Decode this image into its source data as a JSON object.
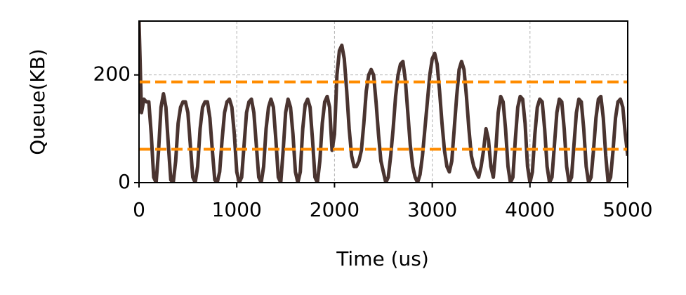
{
  "chart_data": {
    "type": "line",
    "xlabel": "Time (us)",
    "ylabel": "Queue(KB)",
    "xlim": [
      0,
      5000
    ],
    "xticks": [
      0,
      1000,
      2000,
      3000,
      4000,
      5000
    ],
    "ylim": [
      0,
      300
    ],
    "yticks": [
      0,
      200
    ],
    "grid": true,
    "hlines": [
      {
        "value": 187,
        "color": "#ff8c00"
      },
      {
        "value": 62,
        "color": "#ff8c00"
      }
    ],
    "series": [
      {
        "color": "#4a3430",
        "x": [
          0,
          25,
          50,
          75,
          100,
          125,
          150,
          175,
          200,
          225,
          250,
          275,
          300,
          325,
          350,
          375,
          400,
          425,
          450,
          475,
          500,
          525,
          550,
          575,
          600,
          625,
          650,
          675,
          700,
          725,
          750,
          775,
          800,
          825,
          850,
          875,
          900,
          925,
          950,
          975,
          1000,
          1025,
          1050,
          1075,
          1100,
          1125,
          1150,
          1175,
          1200,
          1225,
          1250,
          1275,
          1300,
          1325,
          1350,
          1375,
          1400,
          1425,
          1450,
          1475,
          1500,
          1525,
          1550,
          1575,
          1600,
          1625,
          1650,
          1675,
          1700,
          1725,
          1750,
          1775,
          1800,
          1825,
          1850,
          1875,
          1900,
          1925,
          1950,
          1975,
          2000,
          2025,
          2050,
          2075,
          2100,
          2125,
          2150,
          2175,
          2200,
          2225,
          2250,
          2275,
          2300,
          2325,
          2350,
          2375,
          2400,
          2425,
          2450,
          2475,
          2500,
          2525,
          2550,
          2575,
          2600,
          2625,
          2650,
          2675,
          2700,
          2725,
          2750,
          2775,
          2800,
          2825,
          2850,
          2875,
          2900,
          2925,
          2950,
          2975,
          3000,
          3025,
          3050,
          3075,
          3100,
          3125,
          3150,
          3175,
          3200,
          3225,
          3250,
          3275,
          3300,
          3325,
          3350,
          3375,
          3400,
          3425,
          3450,
          3475,
          3500,
          3525,
          3550,
          3575,
          3600,
          3625,
          3650,
          3675,
          3700,
          3725,
          3750,
          3775,
          3800,
          3825,
          3850,
          3875,
          3900,
          3925,
          3950,
          3975,
          4000,
          4025,
          4050,
          4075,
          4100,
          4125,
          4150,
          4175,
          4200,
          4225,
          4250,
          4275,
          4300,
          4325,
          4350,
          4375,
          4400,
          4425,
          4450,
          4475,
          4500,
          4525,
          4550,
          4575,
          4600,
          4625,
          4650,
          4675,
          4700,
          4725,
          4750,
          4775,
          4800,
          4825,
          4850,
          4875,
          4900,
          4925,
          4950,
          4975,
          5000
        ],
        "values": [
          300,
          130,
          155,
          150,
          150,
          90,
          10,
          0,
          60,
          140,
          165,
          140,
          70,
          5,
          0,
          40,
          110,
          140,
          150,
          150,
          130,
          70,
          10,
          0,
          30,
          100,
          140,
          150,
          150,
          120,
          60,
          5,
          0,
          20,
          80,
          130,
          150,
          155,
          140,
          90,
          20,
          0,
          10,
          70,
          130,
          150,
          155,
          130,
          70,
          10,
          0,
          30,
          100,
          140,
          155,
          140,
          80,
          10,
          0,
          60,
          130,
          155,
          140,
          90,
          20,
          0,
          20,
          100,
          145,
          155,
          140,
          80,
          10,
          0,
          40,
          110,
          150,
          160,
          140,
          60,
          90,
          200,
          245,
          255,
          230,
          170,
          100,
          50,
          30,
          30,
          40,
          60,
          110,
          170,
          200,
          210,
          200,
          150,
          90,
          40,
          20,
          0,
          10,
          50,
          100,
          160,
          200,
          220,
          225,
          190,
          130,
          70,
          30,
          10,
          0,
          15,
          50,
          100,
          150,
          200,
          230,
          240,
          220,
          170,
          110,
          60,
          30,
          20,
          40,
          100,
          160,
          210,
          225,
          210,
          160,
          100,
          50,
          30,
          20,
          10,
          30,
          60,
          100,
          80,
          30,
          10,
          60,
          130,
          160,
          150,
          100,
          30,
          0,
          10,
          80,
          140,
          160,
          155,
          110,
          30,
          0,
          20,
          90,
          140,
          155,
          150,
          100,
          30,
          0,
          10,
          70,
          130,
          155,
          150,
          100,
          30,
          0,
          10,
          70,
          130,
          155,
          150,
          100,
          30,
          0,
          10,
          60,
          120,
          155,
          160,
          120,
          50,
          0,
          10,
          60,
          120,
          150,
          155,
          140,
          90,
          50
        ]
      }
    ]
  }
}
